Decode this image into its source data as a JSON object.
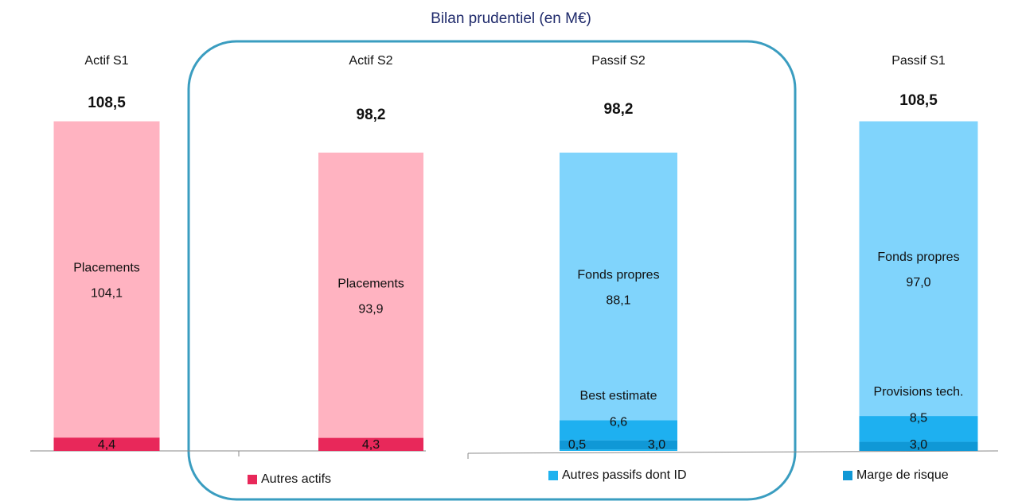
{
  "chart_data": {
    "type": "stacked_bar",
    "title": "Bilan prudentiel (en M€)",
    "categories": [
      "Actif  S1",
      "Actif  S2",
      "Passif S2",
      "Passif S1"
    ],
    "totals": {
      "values": [
        108.5,
        98.2,
        98.2,
        108.5
      ],
      "value_labels": [
        "108,5",
        "98,2",
        "98,2",
        "108,5"
      ]
    },
    "series": [
      {
        "name": "Autres actifs",
        "color": "#e8285a",
        "label_position": "legend",
        "values": [
          4.4,
          4.3,
          null,
          null
        ],
        "value_labels": [
          "4,4",
          "4,3",
          null,
          null
        ]
      },
      {
        "name": "Autres passifs dont ID",
        "color": "#1fb2ef",
        "label_position": "legend",
        "values": [
          null,
          null,
          0.5,
          null
        ],
        "value_labels": [
          null,
          null,
          "0,5",
          null
        ]
      },
      {
        "name": "Marge de risque",
        "color": "#1098d6",
        "label_position": "legend",
        "values": [
          null,
          null,
          3.0,
          3.0
        ],
        "value_labels": [
          null,
          null,
          "3,0",
          "3,0"
        ]
      },
      {
        "name": "Best estimate",
        "color": "#1eb0f0",
        "label_position": "inside",
        "values": [
          null,
          null,
          6.6,
          null
        ],
        "value_labels": [
          null,
          null,
          "6,6",
          null
        ]
      },
      {
        "name": "Provisions tech.",
        "color": "#1eb0f0",
        "label_position": "inside",
        "values": [
          null,
          null,
          null,
          8.5
        ],
        "value_labels": [
          null,
          null,
          null,
          "8,5"
        ]
      },
      {
        "name": "Placements",
        "color": "#ffb3c1",
        "label_position": "inside",
        "values": [
          104.1,
          93.9,
          null,
          null
        ],
        "value_labels": [
          "104,1",
          "93,9",
          null,
          null
        ]
      },
      {
        "name": "Fonds propres",
        "color": "#80d4fc",
        "label_position": "inside",
        "values": [
          null,
          null,
          88.1,
          97.0
        ],
        "value_labels": [
          null,
          null,
          "88,1",
          "97,0"
        ]
      }
    ]
  }
}
